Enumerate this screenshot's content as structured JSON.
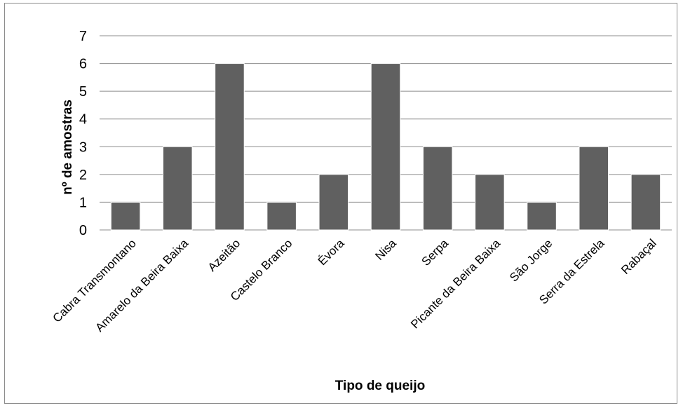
{
  "chart_data": {
    "type": "bar",
    "categories": [
      "Cabra Transmontano",
      "Amarelo da Beira Baixa",
      "Azeitão",
      "Castelo Branco",
      "Évora",
      "Nisa",
      "Serpa",
      "Picante da Beira Baixa",
      "São Jorge",
      "Serra da Estrela",
      "Rabaçal"
    ],
    "values": [
      1,
      3,
      6,
      1,
      2,
      6,
      3,
      2,
      1,
      3,
      2
    ],
    "title": "",
    "xlabel": "Tipo de queijo",
    "ylabel": "nº de amostras",
    "ylim": [
      0,
      7
    ],
    "yticks": [
      "0",
      "1",
      "2",
      "3",
      "4",
      "5",
      "6",
      "7"
    ],
    "grid": true,
    "legend": "none",
    "bar_color": "#606060",
    "gridline_color": "#8c8c8c"
  }
}
